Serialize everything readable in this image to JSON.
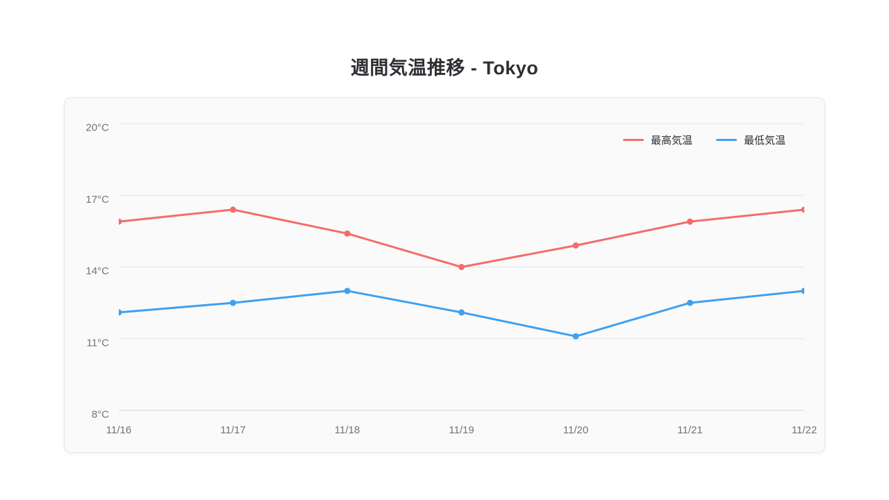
{
  "page": {
    "title": "週間気温推移 - Tokyo"
  },
  "chart_data": {
    "type": "line",
    "title": "週間気温推移 - Tokyo",
    "xlabel": "",
    "ylabel": "",
    "categories": [
      "11/16",
      "11/17",
      "11/18",
      "11/19",
      "11/20",
      "11/21",
      "11/22"
    ],
    "series": [
      {
        "name": "最高気温",
        "color": "#f56c6c",
        "values": [
          15.9,
          16.4,
          15.4,
          14.0,
          14.9,
          15.9,
          16.4
        ]
      },
      {
        "name": "最低気温",
        "color": "#40a0f0",
        "values": [
          12.1,
          12.5,
          13.0,
          12.1,
          11.1,
          12.5,
          13.0
        ]
      }
    ],
    "ylim": [
      8,
      20
    ],
    "yticks": [
      20,
      17,
      14,
      11,
      8
    ],
    "ytick_labels": [
      "20°C",
      "17°C",
      "14°C",
      "11°C",
      "8°C"
    ],
    "unit": "°C",
    "grid": true,
    "legend_position": "top-right"
  },
  "style_colors": {
    "high_series": "#f56c6c",
    "low_series": "#40a0f0",
    "gridline": "#e4e4e4",
    "axis_line": "#d6d6d6",
    "tick_text": "#737373",
    "title_text": "#2d2f33",
    "card_bg": "#fafafa",
    "card_border": "#e7e7e7"
  }
}
